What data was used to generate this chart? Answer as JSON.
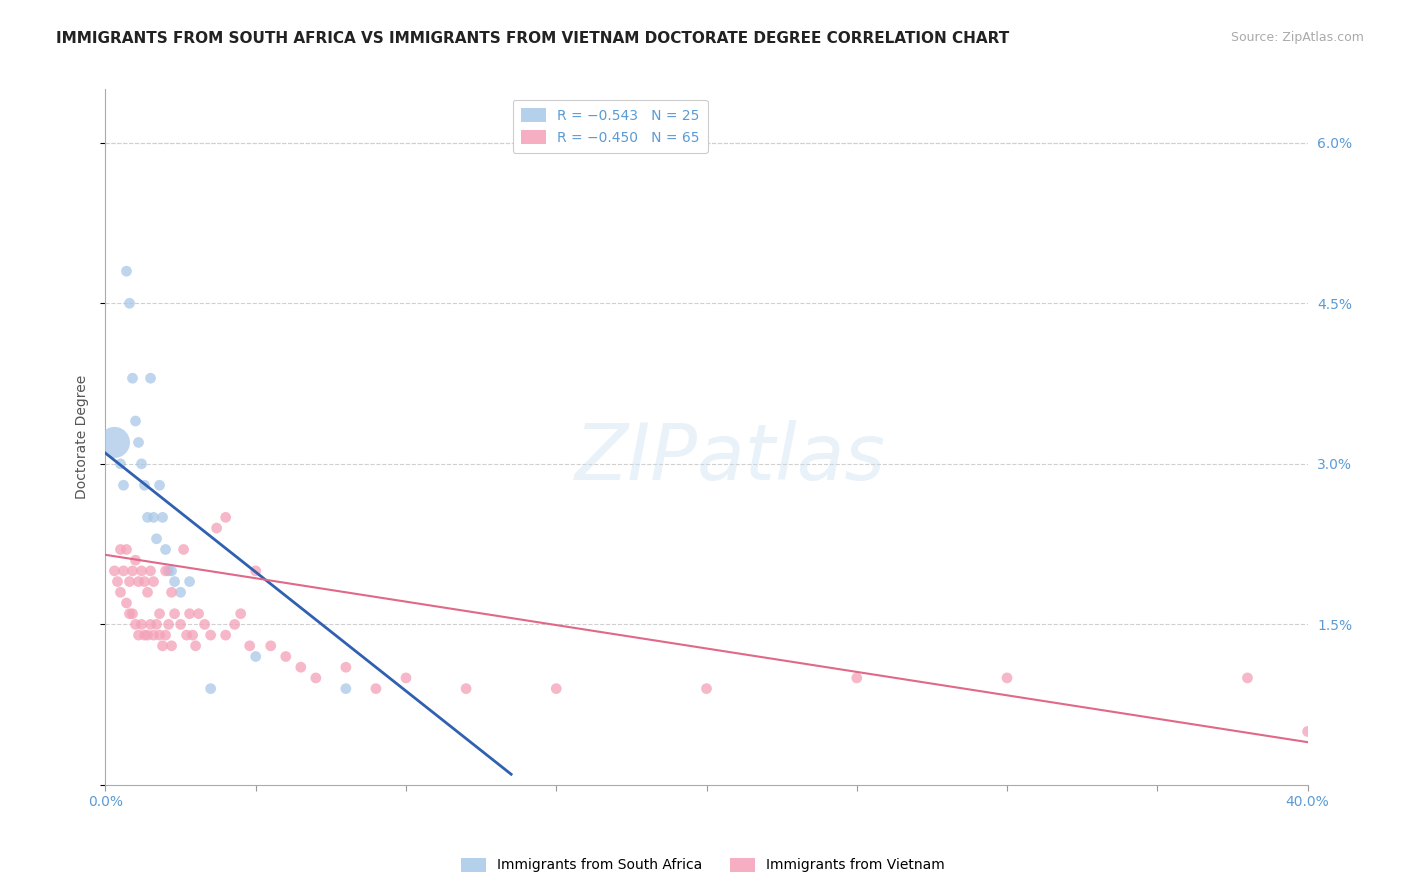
{
  "title": "IMMIGRANTS FROM SOUTH AFRICA VS IMMIGRANTS FROM VIETNAM DOCTORATE DEGREE CORRELATION CHART",
  "source": "Source: ZipAtlas.com",
  "ylabel": "Doctorate Degree",
  "xlim": [
    0.0,
    0.4
  ],
  "ylim": [
    0.0,
    0.065
  ],
  "right_yticks": [
    0.0,
    0.015,
    0.03,
    0.045,
    0.06
  ],
  "right_yticklabels": [
    "",
    "1.5%",
    "3.0%",
    "4.5%",
    "6.0%"
  ],
  "south_africa_color": "#a8c8e8",
  "vietnam_color": "#f4a0b8",
  "regression_blue": "#3060b0",
  "regression_pink": "#e06888",
  "watermark_text": "ZIPatlas",
  "south_africa_x": [
    0.003,
    0.005,
    0.006,
    0.007,
    0.008,
    0.009,
    0.01,
    0.011,
    0.012,
    0.013,
    0.014,
    0.015,
    0.016,
    0.017,
    0.018,
    0.019,
    0.02,
    0.021,
    0.022,
    0.023,
    0.025,
    0.028,
    0.035,
    0.05,
    0.08
  ],
  "south_africa_y": [
    0.032,
    0.03,
    0.028,
    0.048,
    0.045,
    0.038,
    0.034,
    0.032,
    0.03,
    0.028,
    0.025,
    0.038,
    0.025,
    0.023,
    0.028,
    0.025,
    0.022,
    0.02,
    0.02,
    0.019,
    0.018,
    0.019,
    0.009,
    0.012,
    0.009
  ],
  "south_africa_sizes": [
    500,
    60,
    60,
    60,
    60,
    60,
    60,
    60,
    60,
    60,
    60,
    60,
    60,
    60,
    60,
    60,
    60,
    60,
    60,
    60,
    60,
    60,
    60,
    60,
    60
  ],
  "vietnam_x": [
    0.003,
    0.004,
    0.005,
    0.005,
    0.006,
    0.007,
    0.007,
    0.008,
    0.008,
    0.009,
    0.009,
    0.01,
    0.01,
    0.011,
    0.011,
    0.012,
    0.012,
    0.013,
    0.013,
    0.014,
    0.014,
    0.015,
    0.015,
    0.016,
    0.016,
    0.017,
    0.018,
    0.018,
    0.019,
    0.02,
    0.02,
    0.021,
    0.022,
    0.022,
    0.023,
    0.025,
    0.026,
    0.027,
    0.028,
    0.029,
    0.03,
    0.031,
    0.033,
    0.035,
    0.037,
    0.04,
    0.04,
    0.043,
    0.045,
    0.048,
    0.05,
    0.055,
    0.06,
    0.065,
    0.07,
    0.08,
    0.09,
    0.1,
    0.12,
    0.15,
    0.2,
    0.25,
    0.3,
    0.38,
    0.4
  ],
  "vietnam_y": [
    0.02,
    0.019,
    0.022,
    0.018,
    0.02,
    0.022,
    0.017,
    0.019,
    0.016,
    0.02,
    0.016,
    0.021,
    0.015,
    0.019,
    0.014,
    0.02,
    0.015,
    0.019,
    0.014,
    0.018,
    0.014,
    0.02,
    0.015,
    0.019,
    0.014,
    0.015,
    0.016,
    0.014,
    0.013,
    0.02,
    0.014,
    0.015,
    0.018,
    0.013,
    0.016,
    0.015,
    0.022,
    0.014,
    0.016,
    0.014,
    0.013,
    0.016,
    0.015,
    0.014,
    0.024,
    0.025,
    0.014,
    0.015,
    0.016,
    0.013,
    0.02,
    0.013,
    0.012,
    0.011,
    0.01,
    0.011,
    0.009,
    0.01,
    0.009,
    0.009,
    0.009,
    0.01,
    0.01,
    0.01,
    0.005
  ],
  "title_fontsize": 11,
  "axis_color": "#5b9bd5",
  "tick_color": "#999999",
  "grid_color": "#d0d0d0",
  "background_color": "#ffffff",
  "blue_line_x0": 0.0,
  "blue_line_y0": 0.031,
  "blue_line_x1": 0.135,
  "blue_line_y1": 0.001,
  "pink_line_x0": 0.0,
  "pink_line_y0": 0.0215,
  "pink_line_x1": 0.4,
  "pink_line_y1": 0.004
}
